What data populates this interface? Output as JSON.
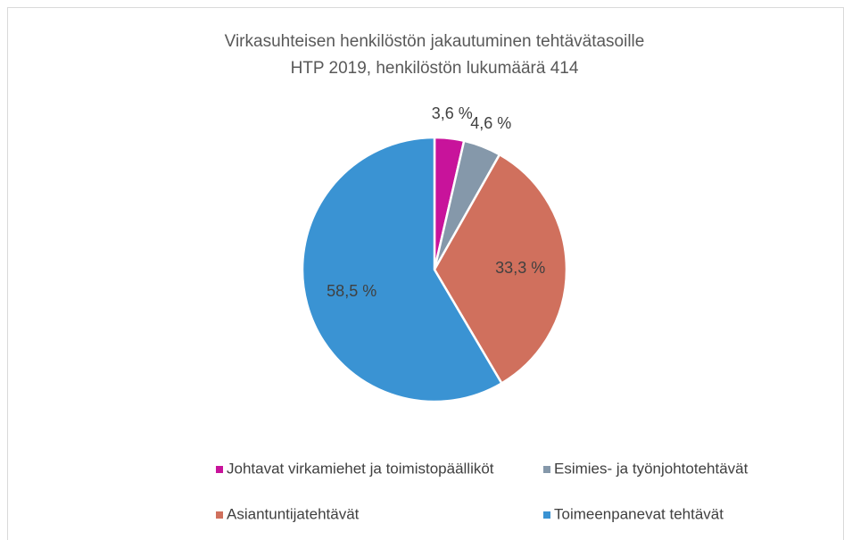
{
  "chart_data": {
    "type": "pie",
    "title": "Virkasuhteisen henkilöstön jakautuminen tehtävätasoille",
    "subtitle": "HTP 2019, henkilöstön lukumäärä 414",
    "categories": [
      "Johtavat virkamiehet ja toimistopäälliköt",
      "Esimies- ja työnjohtotehtävät",
      "Asiantuntijatehtävät",
      "Toimeenpanevat tehtävät"
    ],
    "values": [
      3.6,
      4.6,
      33.3,
      58.5
    ],
    "value_labels": [
      "3,6 %",
      "4,6 %",
      "33,3 %",
      "58,5 %"
    ],
    "colors": [
      "#c8139b",
      "#8598aa",
      "#d0705d",
      "#3a93d3"
    ],
    "legend": "bottom"
  }
}
